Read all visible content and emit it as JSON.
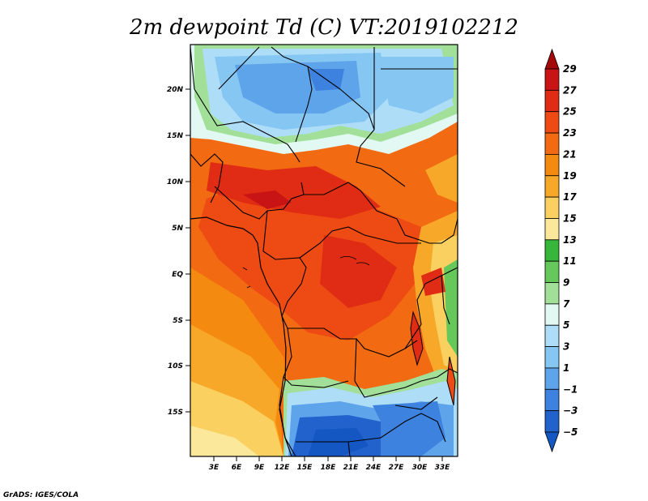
{
  "title": "2m dewpoint Td (C) VT:2019102212",
  "credit": "GrADS: IGES/COLA",
  "map": {
    "lat_labels": [
      "20N",
      "15N",
      "10N",
      "5N",
      "EQ",
      "5S",
      "10S",
      "15S"
    ],
    "lon_labels": [
      "3E",
      "6E",
      "9E",
      "12E",
      "15E",
      "18E",
      "21E",
      "24E",
      "27E",
      "30E",
      "33E"
    ]
  },
  "colorbar": {
    "levels": [
      "29",
      "27",
      "25",
      "23",
      "21",
      "19",
      "17",
      "15",
      "13",
      "11",
      "9",
      "7",
      "5",
      "3",
      "1",
      "−1",
      "−3",
      "−5"
    ],
    "colors": [
      "#a50a0a",
      "#c81414",
      "#e02c14",
      "#ee4a14",
      "#f26a12",
      "#f58a10",
      "#f8a828",
      "#fad060",
      "#fbe89a",
      "#36b63a",
      "#66c85a",
      "#a2e09a",
      "#e2f8f2",
      "#aeddf8",
      "#86c6f2",
      "#5ea4ea",
      "#3c82de",
      "#2262cc",
      "#1456c2"
    ]
  }
}
